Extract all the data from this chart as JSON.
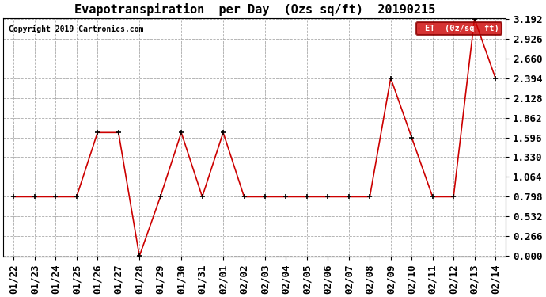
{
  "title": "Evapotranspiration  per Day  (Ozs sq/ft)  20190215",
  "copyright": "Copyright 2019 Cartronics.com",
  "legend_label": "ET  (0z/sq  ft)",
  "x_labels": [
    "01/22",
    "01/23",
    "01/24",
    "01/25",
    "01/26",
    "01/27",
    "01/28",
    "01/29",
    "01/30",
    "01/31",
    "02/01",
    "02/02",
    "02/03",
    "02/04",
    "02/05",
    "02/06",
    "02/07",
    "02/08",
    "02/09",
    "02/10",
    "02/11",
    "02/12",
    "02/13",
    "02/14"
  ],
  "y_values": [
    0.798,
    0.798,
    0.798,
    0.798,
    1.662,
    1.662,
    0.0,
    0.798,
    1.662,
    0.798,
    1.662,
    0.798,
    0.798,
    0.798,
    0.798,
    0.798,
    0.798,
    0.798,
    2.394,
    1.596,
    0.798,
    0.798,
    3.192,
    2.394
  ],
  "y_ticks": [
    0.0,
    0.266,
    0.532,
    0.798,
    1.064,
    1.33,
    1.596,
    1.862,
    2.128,
    2.394,
    2.66,
    2.926,
    3.192
  ],
  "ylim": [
    0.0,
    3.192
  ],
  "line_color": "#cc0000",
  "marker_color": "#000000",
  "background_color": "#ffffff",
  "grid_color": "#aaaaaa",
  "legend_bg": "#cc0000",
  "legend_text_color": "#ffffff",
  "title_fontsize": 11,
  "copyright_fontsize": 7,
  "tick_fontsize": 9
}
